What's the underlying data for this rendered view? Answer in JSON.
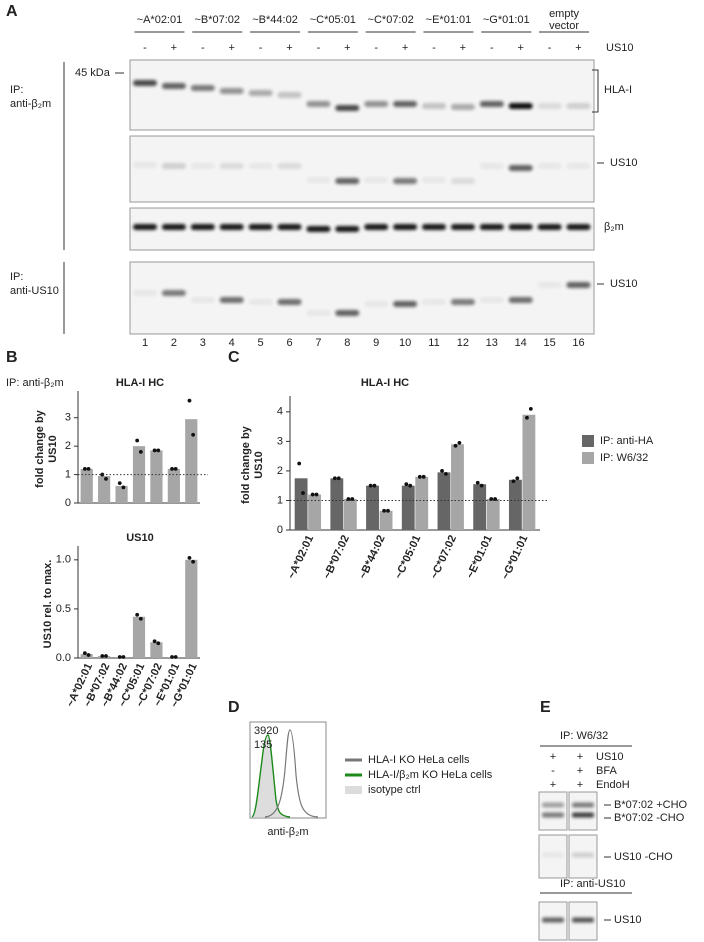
{
  "panel_labels": [
    "A",
    "B",
    "C",
    "D",
    "E"
  ],
  "blot_a": {
    "alleles": [
      "~A*02:01",
      "~B*07:02",
      "~B*44:02",
      "~C*05:01",
      "~C*07:02",
      "~E*01:01",
      "~G*01:01",
      [
        "empty",
        "vector"
      ]
    ],
    "signs": [
      "-",
      "+",
      "-",
      "+",
      "-",
      "+",
      "-",
      "+",
      "-",
      "+",
      "-",
      "+",
      "-",
      "+",
      "-",
      "+"
    ],
    "treatment": "US10",
    "ip_top": [
      "IP:",
      "anti-β₂m"
    ],
    "ip_bottom": [
      "IP:",
      "anti-US10"
    ],
    "marker": "45 kDa",
    "band_labels": [
      "HLA-I",
      "US10",
      "β₂m",
      "US10"
    ],
    "lanes": [
      1,
      2,
      3,
      4,
      5,
      6,
      7,
      8,
      9,
      10,
      11,
      12,
      13,
      14,
      15,
      16
    ]
  },
  "chart_data": [
    {
      "type": "bar",
      "annotation": "IP: anti-β₂m",
      "title": "HLA-I HC",
      "y_label": [
        "fold change by",
        "US10"
      ],
      "categories": [
        null,
        null,
        null,
        null,
        null,
        null,
        null
      ],
      "values": [
        1.2,
        0.95,
        0.6,
        2.0,
        1.85,
        1.2,
        2.95
      ],
      "replicates": [
        [
          1.2,
          1.2
        ],
        [
          1.0,
          0.85
        ],
        [
          0.7,
          0.55
        ],
        [
          2.2,
          1.8
        ],
        [
          1.85,
          1.85
        ],
        [
          1.2,
          1.2
        ],
        [
          3.6,
          2.4
        ]
      ],
      "color": "#a6a6a6",
      "reference_line": 1,
      "ylim": [
        0,
        3.8
      ],
      "yticks": [
        0,
        1,
        2,
        3
      ]
    },
    {
      "type": "bar",
      "title": "US10",
      "y_label": [
        "US10 rel. to max."
      ],
      "categories": [
        "~A*02:01",
        "~B*07:02",
        "~B*44:02",
        "~C*05:01",
        "~C*07:02",
        "~E*01:01",
        "~G*01:01"
      ],
      "values": [
        0.04,
        0.02,
        0.01,
        0.42,
        0.16,
        0.01,
        1.0
      ],
      "replicates": [
        [
          0.05,
          0.03
        ],
        [
          0.02,
          0.02
        ],
        [
          0.01,
          0.01
        ],
        [
          0.44,
          0.4
        ],
        [
          0.17,
          0.15
        ],
        [
          0.01,
          0.01
        ],
        [
          1.02,
          0.98
        ]
      ],
      "color": "#a6a6a6",
      "ylim": [
        0,
        1.1
      ],
      "yticks": [
        {
          "value": 0,
          "label": "0.0"
        },
        {
          "value": 0.5,
          "label": "0.5"
        },
        {
          "value": 1,
          "label": "1.0"
        }
      ]
    },
    {
      "type": "grouped_bar",
      "title": "HLA-I HC",
      "y_label": [
        "fold change by",
        "US10"
      ],
      "categories": [
        "~A*02:01",
        "~B*07:02",
        "~B*44:02",
        "~C*05:01",
        "~C*07:02",
        "~E*01:01",
        "~G*01:01"
      ],
      "series": [
        {
          "name": "IP: anti-HA",
          "color": "#666666",
          "values": [
            1.75,
            1.75,
            1.5,
            1.5,
            1.95,
            1.55,
            1.7
          ],
          "replicates": [
            [
              2.25,
              1.25
            ],
            [
              1.75,
              1.75
            ],
            [
              1.5,
              1.5
            ],
            [
              1.55,
              1.5
            ],
            [
              2.0,
              1.9
            ],
            [
              1.6,
              1.5
            ],
            [
              1.65,
              1.75
            ]
          ]
        },
        {
          "name": "IP: W6/32",
          "color": "#a6a6a6",
          "values": [
            1.2,
            1.05,
            0.65,
            1.8,
            2.9,
            1.05,
            3.9
          ],
          "replicates": [
            [
              1.2,
              1.2
            ],
            [
              1.05,
              1.05
            ],
            [
              0.65,
              0.65
            ],
            [
              1.8,
              1.8
            ],
            [
              2.85,
              2.95
            ],
            [
              1.05,
              1.05
            ],
            [
              3.8,
              4.1
            ]
          ]
        }
      ],
      "reference_line": 1,
      "legend": "right",
      "ylim": [
        0,
        4.4
      ],
      "yticks": [
        0,
        1,
        2,
        3,
        4
      ]
    }
  ],
  "flow_d": {
    "counts": [
      "3920",
      "135"
    ],
    "x_label": "anti-β₂m",
    "legend": [
      "HLA-I KO HeLa cells",
      "HLA-I/β₂m KO HeLa cells",
      "isotype ctrl"
    ]
  },
  "blot_e": {
    "ip_top": "IP: W6/32",
    "rows": [
      {
        "name": "US10",
        "signs": [
          "+",
          "+"
        ]
      },
      {
        "name": "BFA",
        "signs": [
          "-",
          "+"
        ]
      },
      {
        "name": "EndoH",
        "signs": [
          "+",
          "+"
        ]
      }
    ],
    "band_labels": [
      "B*07:02 +CHO",
      "B*07:02 -CHO",
      "US10 -CHO"
    ],
    "ip_bottom": "IP: anti-US10",
    "bottom_label": "US10"
  }
}
